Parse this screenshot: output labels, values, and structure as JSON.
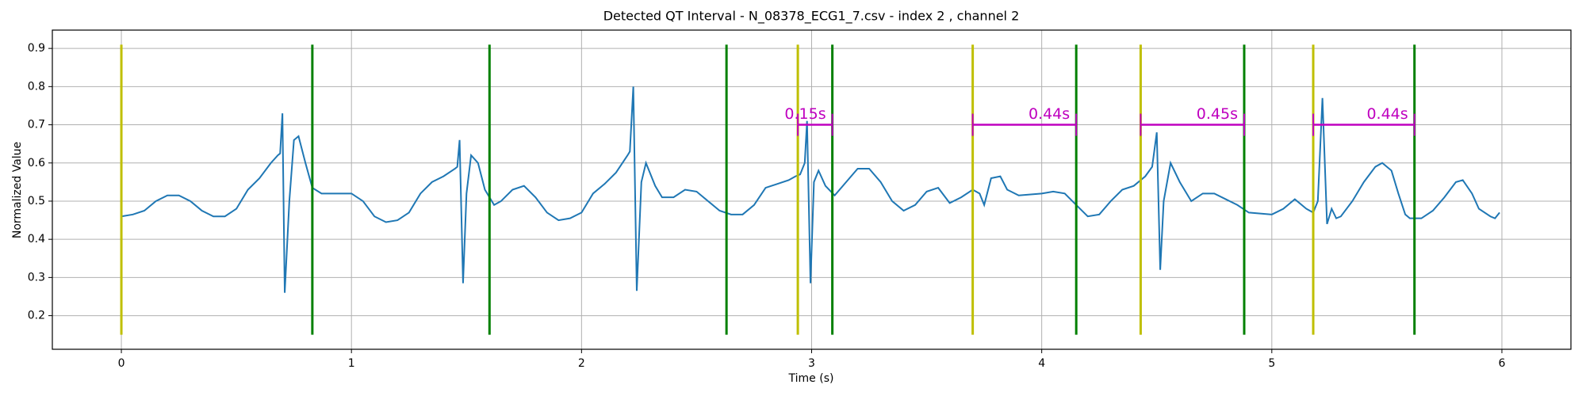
{
  "chart_data": {
    "type": "line",
    "title": "Detected QT Interval - N_08378_ECG1_7.csv - index 2 , channel 2",
    "x_label": "Time (s)",
    "y_label": "Normalized Value",
    "xlim": [
      -0.3,
      6.3
    ],
    "ylim": [
      0.112,
      0.948
    ],
    "xticks": [
      0,
      1,
      2,
      3,
      4,
      5,
      6
    ],
    "yticks": [
      0.2,
      0.3,
      0.4,
      0.5,
      0.6,
      0.7,
      0.8,
      0.9
    ],
    "grid": true,
    "series": [
      {
        "color": "#1f77b4",
        "x": [
          0,
          0.05,
          0.1,
          0.15,
          0.2,
          0.25,
          0.3,
          0.35,
          0.4,
          0.45,
          0.5,
          0.55,
          0.6,
          0.65,
          0.68,
          0.69,
          0.7,
          0.71,
          0.73,
          0.75,
          0.77,
          0.8,
          0.83,
          0.87,
          0.95,
          1.0,
          1.05,
          1.1,
          1.15,
          1.2,
          1.25,
          1.3,
          1.35,
          1.4,
          1.45,
          1.46,
          1.47,
          1.485,
          1.5,
          1.52,
          1.55,
          1.58,
          1.62,
          1.65,
          1.7,
          1.75,
          1.8,
          1.85,
          1.9,
          1.95,
          2.0,
          2.05,
          2.1,
          2.15,
          2.2,
          2.21,
          2.225,
          2.24,
          2.26,
          2.28,
          2.32,
          2.35,
          2.4,
          2.45,
          2.5,
          2.55,
          2.6,
          2.65,
          2.7,
          2.75,
          2.8,
          2.85,
          2.9,
          2.93,
          2.95,
          2.97,
          2.98,
          2.995,
          3.01,
          3.03,
          3.06,
          3.1,
          3.15,
          3.2,
          3.25,
          3.3,
          3.35,
          3.4,
          3.45,
          3.5,
          3.55,
          3.6,
          3.65,
          3.7,
          3.73,
          3.75,
          3.78,
          3.82,
          3.85,
          3.9,
          4.0,
          4.05,
          4.1,
          4.15,
          4.2,
          4.25,
          4.3,
          4.35,
          4.4,
          4.45,
          4.48,
          4.5,
          4.515,
          4.53,
          4.56,
          4.6,
          4.65,
          4.7,
          4.75,
          4.8,
          4.85,
          4.9,
          5.0,
          5.05,
          5.1,
          5.15,
          5.18,
          5.2,
          5.22,
          5.24,
          5.26,
          5.28,
          5.3,
          5.35,
          5.4,
          5.45,
          5.48,
          5.52,
          5.55,
          5.58,
          5.6,
          5.65,
          5.7,
          5.75,
          5.8,
          5.83,
          5.87,
          5.9,
          5.95,
          5.97,
          5.99
        ],
        "values": [
          0.46,
          0.465,
          0.475,
          0.5,
          0.515,
          0.515,
          0.5,
          0.475,
          0.46,
          0.46,
          0.48,
          0.53,
          0.56,
          0.6,
          0.62,
          0.625,
          0.73,
          0.26,
          0.5,
          0.66,
          0.67,
          0.6,
          0.535,
          0.52,
          0.52,
          0.52,
          0.5,
          0.46,
          0.445,
          0.45,
          0.47,
          0.52,
          0.55,
          0.565,
          0.585,
          0.59,
          0.66,
          0.285,
          0.52,
          0.62,
          0.6,
          0.53,
          0.49,
          0.5,
          0.53,
          0.54,
          0.51,
          0.47,
          0.45,
          0.455,
          0.47,
          0.52,
          0.545,
          0.575,
          0.62,
          0.63,
          0.8,
          0.265,
          0.55,
          0.6,
          0.54,
          0.51,
          0.51,
          0.53,
          0.525,
          0.5,
          0.475,
          0.465,
          0.465,
          0.49,
          0.535,
          0.545,
          0.555,
          0.565,
          0.57,
          0.6,
          0.71,
          0.285,
          0.55,
          0.58,
          0.54,
          0.515,
          0.55,
          0.585,
          0.585,
          0.55,
          0.5,
          0.475,
          0.49,
          0.525,
          0.535,
          0.495,
          0.51,
          0.53,
          0.52,
          0.49,
          0.56,
          0.565,
          0.53,
          0.515,
          0.52,
          0.525,
          0.52,
          0.49,
          0.46,
          0.465,
          0.5,
          0.53,
          0.54,
          0.565,
          0.59,
          0.68,
          0.32,
          0.5,
          0.6,
          0.55,
          0.5,
          0.52,
          0.52,
          0.505,
          0.49,
          0.47,
          0.465,
          0.48,
          0.505,
          0.48,
          0.47,
          0.5,
          0.77,
          0.44,
          0.48,
          0.455,
          0.46,
          0.5,
          0.55,
          0.59,
          0.6,
          0.58,
          0.52,
          0.465,
          0.455,
          0.455,
          0.475,
          0.51,
          0.55,
          0.555,
          0.52,
          0.48,
          0.46,
          0.455,
          0.47
        ]
      }
    ],
    "vline_range": [
      0.15,
      0.91
    ],
    "vlines": [
      {
        "color": "#bfbf00",
        "x": [
          0,
          2.94,
          3.7,
          4.43,
          5.18
        ]
      },
      {
        "color": "#008000",
        "x": [
          0.83,
          1.6,
          2.63,
          3.09,
          4.15,
          4.88,
          5.62
        ]
      }
    ],
    "interval_color": "#bf00bf",
    "intervals": [
      {
        "x_start": 2.94,
        "x_end": 3.09,
        "y": 0.7,
        "label": "0.15s"
      },
      {
        "x_start": 3.7,
        "x_end": 4.15,
        "y": 0.7,
        "label": "0.44s"
      },
      {
        "x_start": 4.43,
        "x_end": 4.88,
        "y": 0.7,
        "label": "0.45s"
      },
      {
        "x_start": 5.18,
        "x_end": 5.62,
        "y": 0.7,
        "label": "0.44s"
      }
    ]
  }
}
